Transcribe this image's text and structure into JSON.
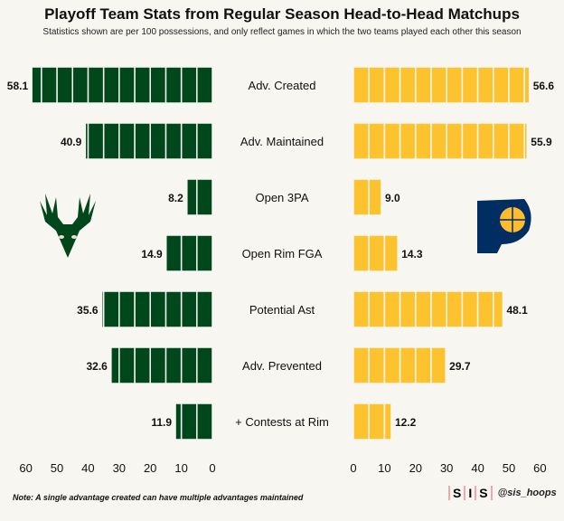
{
  "chart_data": {
    "type": "bar",
    "title": "Playoff Team Stats from Regular Season Head-to-Head Matchups",
    "subtitle": "Statistics shown are per 100 possessions, and only reflect games in which the two teams played each other this season",
    "categories": [
      "Adv. Created",
      "Adv. Maintained",
      "Open 3PA",
      "Open Rim FGA",
      "Potential Ast",
      "Adv. Prevented",
      "+ Contests at Rim"
    ],
    "series": [
      {
        "name": "Bucks",
        "color": "#00471b",
        "values": [
          58.1,
          40.9,
          8.2,
          14.9,
          35.6,
          32.6,
          11.9
        ]
      },
      {
        "name": "Pacers",
        "color": "#fdc32f",
        "values": [
          56.6,
          55.9,
          9.0,
          14.3,
          48.1,
          29.7,
          12.2
        ]
      }
    ],
    "xlim": [
      0,
      60
    ],
    "ticks": [
      0,
      10,
      20,
      30,
      40,
      50,
      60
    ]
  },
  "note": "Note: A single advantage created can have multiple advantages maintained",
  "brand": {
    "logo": [
      "S",
      "I",
      "S"
    ],
    "handle": "@sis_hoops"
  }
}
